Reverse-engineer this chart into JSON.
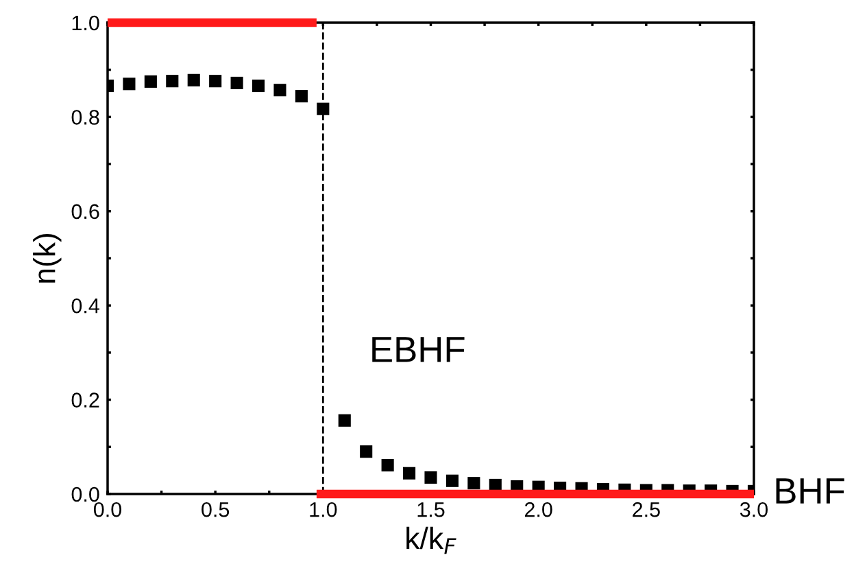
{
  "chart_data": {
    "type": "scatter",
    "xlabel": "k/k$_{F}$",
    "ylabel": "n(k)",
    "series": [
      {
        "color": "#000000",
        "marker": "square",
        "x": [
          0.0,
          0.1,
          0.2,
          0.3,
          0.4,
          0.5,
          0.6,
          0.7,
          0.8,
          0.9,
          1.0,
          1.1,
          1.2,
          1.3,
          1.4,
          1.5,
          1.6,
          1.7,
          1.8,
          1.9,
          2.0,
          2.1,
          2.2,
          2.3,
          2.4,
          2.5,
          2.6,
          2.7,
          2.8,
          2.9,
          3.0
        ],
        "values": [
          0.866,
          0.87,
          0.875,
          0.876,
          0.878,
          0.876,
          0.872,
          0.866,
          0.857,
          0.844,
          0.817,
          0.156,
          0.09,
          0.061,
          0.044,
          0.035,
          0.028,
          0.023,
          0.019,
          0.016,
          0.015,
          0.013,
          0.012,
          0.01,
          0.009,
          0.008,
          0.008,
          0.007,
          0.007,
          0.006,
          0.006
        ]
      },
      {
        "type": "line",
        "color": "#ff1a1a",
        "marker": "none",
        "line_style": "solid",
        "x": [
          0.0,
          0.97
        ],
        "values": [
          1.0,
          1.0
        ]
      },
      {
        "type": "line",
        "color": "#ff1a1a",
        "marker": "none",
        "line_style": "solid",
        "x": [
          0.97,
          3.0
        ],
        "values": [
          0.0,
          0.0
        ]
      }
    ],
    "xlim": [
      0.0,
      3.0
    ],
    "ylim": [
      0.0,
      1.0
    ],
    "xticks": [
      {
        "value": 0,
        "label": "0.0"
      },
      {
        "value": 0.25,
        "label": null
      },
      0.5,
      {
        "value": 0.75,
        "label": null
      },
      {
        "value": 1,
        "label": "1.0"
      },
      {
        "value": 1.25,
        "label": null
      },
      1.5,
      {
        "value": 1.75,
        "label": null
      },
      {
        "value": 2,
        "label": "2.0"
      },
      {
        "value": 2.25,
        "label": null
      },
      2.5,
      {
        "value": 2.75,
        "label": null
      },
      {
        "value": 3,
        "label": "3.0"
      }
    ],
    "yticks": [
      {
        "value": 0,
        "label": "0.0"
      },
      {
        "value": 0.1,
        "label": null
      },
      0.2,
      {
        "value": 0.3,
        "label": null
      },
      0.4,
      {
        "value": 0.5,
        "label": null
      },
      0.6,
      {
        "value": 0.7,
        "label": null
      },
      0.8,
      {
        "value": 0.9,
        "label": null
      },
      {
        "value": 1,
        "label": "1.0"
      }
    ],
    "ref_lines": [
      {
        "axis": "x",
        "value": 1.0,
        "label": null,
        "color": "#000000",
        "line_style": "dashed"
      }
    ],
    "annotations": [
      "EBHF",
      "BHF"
    ],
    "grid": false,
    "legend": false
  }
}
